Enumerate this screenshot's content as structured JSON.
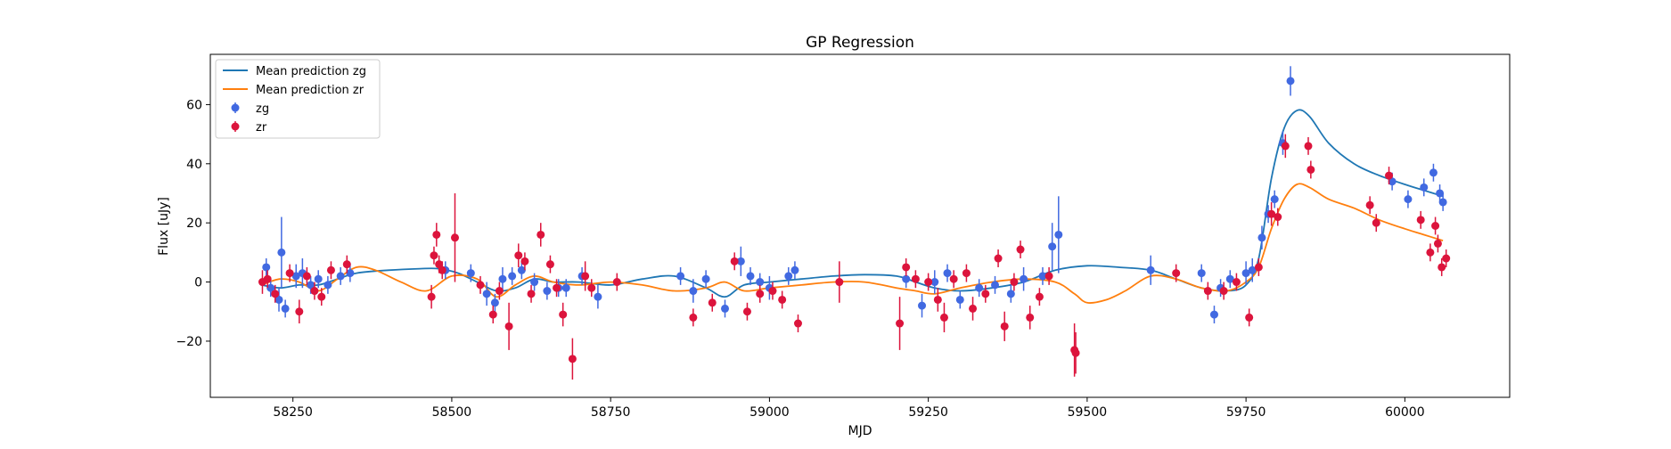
{
  "chart_data": {
    "type": "scatter",
    "title": "GP Regression",
    "xlabel": "MJD",
    "ylabel": "Flux [uJy]",
    "xlim": [
      58120,
      60165
    ],
    "ylim": [
      -39,
      77
    ],
    "xticks": [
      58250,
      58500,
      58750,
      59000,
      59250,
      59500,
      59750,
      60000
    ],
    "yticks": [
      -20,
      0,
      20,
      40,
      60
    ],
    "grid": false,
    "legend_position": "upper-left",
    "colors": {
      "zg_line": "#1f77b4",
      "zr_line": "#ff7f0e",
      "zg_points": "#4169e1",
      "zr_points": "#dc143c"
    },
    "legend": [
      {
        "label": "Mean prediction zg",
        "kind": "line",
        "color": "#1f77b4"
      },
      {
        "label": "Mean prediction zr",
        "kind": "line",
        "color": "#ff7f0e"
      },
      {
        "label": "zg",
        "kind": "errorbar",
        "color": "#4169e1"
      },
      {
        "label": "zr",
        "kind": "errorbar",
        "color": "#dc143c"
      }
    ],
    "series": [
      {
        "name": "Mean prediction zg",
        "kind": "line",
        "color": "#1f77b4",
        "x": [
          58200,
          58230,
          58260,
          58290,
          58320,
          58350,
          58400,
          58450,
          58480,
          58510,
          58540,
          58570,
          58600,
          58630,
          58660,
          58700,
          58750,
          58800,
          58850,
          58900,
          58930,
          58960,
          59000,
          59050,
          59100,
          59150,
          59200,
          59230,
          59260,
          59300,
          59350,
          59400,
          59450,
          59500,
          59550,
          59600,
          59640,
          59680,
          59720,
          59750,
          59770,
          59790,
          59810,
          59830,
          59850,
          59880,
          59920,
          59960,
          60000,
          60030,
          60060
        ],
        "y": [
          -1,
          -2,
          -1,
          -1,
          1,
          3,
          4,
          4.5,
          4.5,
          3,
          0,
          -3,
          -2,
          1,
          0,
          0,
          -1,
          1,
          2,
          -2,
          -5,
          -1,
          0,
          1,
          2,
          2.5,
          2,
          0,
          -2,
          -3,
          -2,
          0,
          4,
          5.5,
          5,
          4,
          1,
          -2,
          -3,
          -1,
          8,
          35,
          52,
          58,
          56,
          47,
          40,
          36,
          33,
          31,
          29
        ]
      },
      {
        "name": "Mean prediction zr",
        "kind": "line",
        "color": "#ff7f0e",
        "x": [
          58200,
          58230,
          58260,
          58290,
          58320,
          58350,
          58380,
          58420,
          58460,
          58500,
          58540,
          58570,
          58600,
          58630,
          58660,
          58700,
          58750,
          58800,
          58850,
          58900,
          58930,
          58960,
          59000,
          59050,
          59100,
          59150,
          59200,
          59230,
          59260,
          59300,
          59350,
          59400,
          59450,
          59480,
          59500,
          59530,
          59560,
          59600,
          59640,
          59680,
          59720,
          59750,
          59770,
          59790,
          59810,
          59830,
          59850,
          59880,
          59920,
          59960,
          60000,
          60030,
          60060
        ],
        "y": [
          -1,
          1,
          0,
          -3,
          1,
          5,
          4,
          0,
          -3,
          2,
          1,
          -5,
          -1,
          2,
          0,
          -1,
          0,
          -1,
          -3,
          -2,
          0,
          -3,
          -2,
          -1,
          0,
          0,
          -2,
          -3,
          -4,
          -2,
          0,
          1,
          0,
          -4,
          -7,
          -6,
          -3,
          2,
          1,
          -2,
          -3,
          0,
          5,
          18,
          28,
          33,
          32,
          28,
          25,
          21,
          18,
          16,
          14
        ]
      },
      {
        "name": "zg",
        "kind": "errorbar",
        "color": "#4169e1",
        "x": [
          58208,
          58215,
          58228,
          58232,
          58238,
          58255,
          58265,
          58278,
          58290,
          58305,
          58325,
          58340,
          58490,
          58530,
          58555,
          58568,
          58580,
          58595,
          58610,
          58630,
          58650,
          58668,
          58680,
          58705,
          58730,
          58860,
          58880,
          58900,
          58930,
          58955,
          58970,
          58985,
          59000,
          59030,
          59040,
          59215,
          59240,
          59260,
          59280,
          59300,
          59330,
          59355,
          59380,
          59400,
          59430,
          59445,
          59455,
          59600,
          59680,
          59700,
          59710,
          59725,
          59750,
          59760,
          59775,
          59785,
          59795,
          59808,
          59820,
          59980,
          60005,
          60030,
          60045,
          60055,
          60060
        ],
        "y": [
          5,
          -2,
          -6,
          10,
          -9,
          2,
          3,
          -1,
          1,
          -1,
          2,
          3,
          4,
          3,
          -4,
          -7,
          1,
          2,
          4,
          0,
          -3,
          -2,
          -2,
          2,
          -5,
          2,
          -3,
          1,
          -9,
          7,
          2,
          0,
          -2,
          2,
          4,
          1,
          -8,
          0,
          3,
          -6,
          -2,
          -1,
          -4,
          1,
          2,
          12,
          16,
          4,
          3,
          -11,
          -2,
          1,
          3,
          4,
          15,
          23,
          28,
          47,
          68,
          34,
          28,
          32,
          37,
          30,
          27
        ],
        "err": [
          3,
          3,
          4,
          12,
          3,
          4,
          5,
          3,
          3,
          3,
          3,
          3,
          3,
          3,
          4,
          3,
          4,
          3,
          3,
          3,
          3,
          3,
          3,
          3,
          4,
          3,
          4,
          3,
          3,
          5,
          3,
          3,
          4,
          3,
          3,
          3,
          4,
          4,
          3,
          3,
          3,
          3,
          3,
          4,
          3,
          8,
          13,
          5,
          3,
          3,
          3,
          3,
          4,
          4,
          4,
          3,
          3,
          4,
          5,
          3,
          3,
          3,
          3,
          3,
          3
        ]
      },
      {
        "name": "zr",
        "kind": "errorbar",
        "color": "#dc143c",
        "x": [
          58202,
          58210,
          58222,
          58245,
          58260,
          58272,
          58284,
          58295,
          58310,
          58335,
          58468,
          58472,
          58476,
          58480,
          58485,
          58505,
          58545,
          58565,
          58575,
          58590,
          58605,
          58615,
          58625,
          58640,
          58655,
          58665,
          58675,
          58690,
          58710,
          58720,
          58760,
          58880,
          58910,
          58945,
          58965,
          58985,
          59005,
          59020,
          59045,
          59110,
          59205,
          59215,
          59230,
          59250,
          59265,
          59275,
          59290,
          59310,
          59320,
          59340,
          59360,
          59370,
          59385,
          59395,
          59410,
          59425,
          59440,
          59480,
          59482,
          59640,
          59690,
          59715,
          59735,
          59755,
          59770,
          59790,
          59800,
          59812,
          59848,
          59852,
          59945,
          59955,
          59975,
          60025,
          60040,
          60048,
          60052,
          60058,
          60065
        ],
        "y": [
          0,
          1,
          -4,
          3,
          -10,
          2,
          -3,
          -5,
          4,
          6,
          -5,
          9,
          16,
          6,
          4,
          15,
          -1,
          -11,
          -3,
          -15,
          9,
          7,
          -4,
          16,
          6,
          -2,
          -11,
          -26,
          2,
          -2,
          0,
          -12,
          -7,
          7,
          -10,
          -4,
          -3,
          -6,
          -14,
          0,
          -14,
          5,
          1,
          0,
          -6,
          -12,
          1,
          3,
          -9,
          -4,
          8,
          -15,
          0,
          11,
          -12,
          -5,
          2,
          -23,
          -24,
          3,
          -3,
          -3,
          0,
          -12,
          5,
          23,
          22,
          46,
          46,
          38,
          26,
          20,
          36,
          21,
          10,
          19,
          13,
          5,
          8
        ],
        "err": [
          4,
          3,
          3,
          3,
          4,
          3,
          3,
          3,
          3,
          3,
          4,
          3,
          4,
          3,
          3,
          15,
          3,
          3,
          3,
          8,
          4,
          3,
          3,
          4,
          3,
          3,
          4,
          7,
          5,
          3,
          3,
          3,
          3,
          3,
          3,
          3,
          3,
          3,
          3,
          7,
          9,
          3,
          3,
          3,
          4,
          5,
          3,
          3,
          4,
          3,
          3,
          5,
          3,
          3,
          4,
          3,
          3,
          9,
          7,
          3,
          3,
          3,
          3,
          3,
          3,
          4,
          3,
          4,
          3,
          3,
          3,
          3,
          3,
          3,
          3,
          3,
          3,
          3,
          3
        ]
      }
    ]
  }
}
